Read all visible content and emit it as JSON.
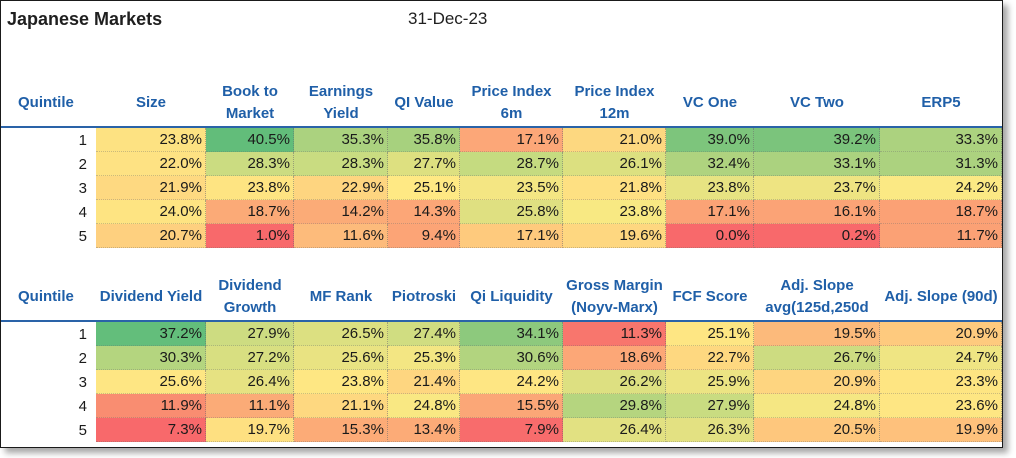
{
  "title": "Japanese Markets",
  "date": "31-Dec-23",
  "tables": [
    {
      "headers": [
        "Quintile",
        "Size",
        "Book to Market",
        "Earnings Yield",
        "QI Value",
        "Price Index 6m",
        "Price Index 12m",
        "VC One",
        "VC Two",
        "ERP5"
      ],
      "rows": [
        {
          "quintile": "1",
          "values": [
            "23.8%",
            "40.5%",
            "35.3%",
            "35.8%",
            "17.1%",
            "21.0%",
            "39.0%",
            "39.2%",
            "33.3%"
          ],
          "colors": [
            "#fde282",
            "#62bd7a",
            "#abd27f",
            "#a7d17e",
            "#fca778",
            "#fdd880",
            "#7dc57c",
            "#7bc47c",
            "#acd27f"
          ]
        },
        {
          "quintile": "2",
          "values": [
            "22.0%",
            "28.3%",
            "28.3%",
            "27.7%",
            "28.7%",
            "26.1%",
            "32.4%",
            "33.1%",
            "31.3%"
          ],
          "colors": [
            "#fee283",
            "#cbdc81",
            "#c9dc81",
            "#dde080",
            "#c5db80",
            "#dce080",
            "#afd37f",
            "#abd27f",
            "#acd27f"
          ]
        },
        {
          "quintile": "3",
          "values": [
            "21.9%",
            "23.8%",
            "22.9%",
            "25.1%",
            "23.5%",
            "21.8%",
            "23.8%",
            "23.7%",
            "24.2%"
          ],
          "colors": [
            "#fed981",
            "#fee482",
            "#fed580",
            "#ffe984",
            "#f4e683",
            "#fee082",
            "#e7e382",
            "#eee482",
            "#fbe984"
          ]
        },
        {
          "quintile": "4",
          "values": [
            "24.0%",
            "18.7%",
            "14.2%",
            "14.3%",
            "25.8%",
            "23.8%",
            "17.1%",
            "16.1%",
            "18.7%"
          ],
          "colors": [
            "#fee482",
            "#fbaa77",
            "#fbab77",
            "#fca677",
            "#dfe081",
            "#f8e983",
            "#fba376",
            "#fba376",
            "#fba175"
          ]
        },
        {
          "quintile": "5",
          "values": [
            "20.7%",
            "1.0%",
            "11.6%",
            "9.4%",
            "17.1%",
            "19.6%",
            "0.0%",
            "0.2%",
            "11.7%"
          ],
          "colors": [
            "#fed07f",
            "#f8696b",
            "#fdbb7b",
            "#fca476",
            "#feca7d",
            "#fed780",
            "#f8696b",
            "#f8696b",
            "#fba175"
          ]
        }
      ]
    },
    {
      "headers": [
        "Quintile",
        "Dividend Yield",
        "Dividend Growth",
        "MF Rank",
        "Piotroski",
        "Qi Liquidity",
        "Gross Margin (Noyv-Marx)",
        "FCF Score",
        "Adj. Slope avg(125d,250d",
        "Adj. Slope (90d)"
      ],
      "rows": [
        {
          "quintile": "1",
          "values": [
            "37.2%",
            "27.9%",
            "26.5%",
            "27.4%",
            "34.1%",
            "11.3%",
            "25.1%",
            "19.5%",
            "20.9%"
          ],
          "colors": [
            "#63be7b",
            "#cddc81",
            "#dce081",
            "#d0dd81",
            "#8dc97d",
            "#f8766d",
            "#fee683",
            "#fcba7b",
            "#feca7e"
          ]
        },
        {
          "quintile": "2",
          "values": [
            "30.3%",
            "27.2%",
            "25.6%",
            "25.3%",
            "30.6%",
            "18.6%",
            "22.7%",
            "26.7%",
            "24.7%"
          ],
          "colors": [
            "#b4d57f",
            "#d8df81",
            "#e9e382",
            "#f3e683",
            "#b2d47f",
            "#fca777",
            "#fed880",
            "#cddc81",
            "#efe583"
          ]
        },
        {
          "quintile": "3",
          "values": [
            "25.6%",
            "26.4%",
            "23.8%",
            "21.4%",
            "24.2%",
            "26.2%",
            "25.9%",
            "20.9%",
            "23.3%"
          ],
          "colors": [
            "#fee683",
            "#e6e282",
            "#fee783",
            "#fed680",
            "#fee683",
            "#dde081",
            "#ece483",
            "#fed580",
            "#fee582"
          ]
        },
        {
          "quintile": "4",
          "values": [
            "11.9%",
            "11.1%",
            "21.1%",
            "24.8%",
            "15.5%",
            "29.8%",
            "27.9%",
            "24.8%",
            "23.6%"
          ],
          "colors": [
            "#f98d71",
            "#fbab77",
            "#fed880",
            "#f9e883",
            "#fba777",
            "#b5d57f",
            "#c9dc81",
            "#f5e783",
            "#fee683"
          ]
        },
        {
          "quintile": "5",
          "values": [
            "7.3%",
            "19.7%",
            "15.3%",
            "13.4%",
            "7.9%",
            "26.4%",
            "26.3%",
            "20.5%",
            "19.9%"
          ],
          "colors": [
            "#f8696b",
            "#fee081",
            "#fcab77",
            "#fcab77",
            "#f86c6c",
            "#e2e182",
            "#e3e182",
            "#fec77d",
            "#fec17c"
          ]
        }
      ]
    }
  ]
}
